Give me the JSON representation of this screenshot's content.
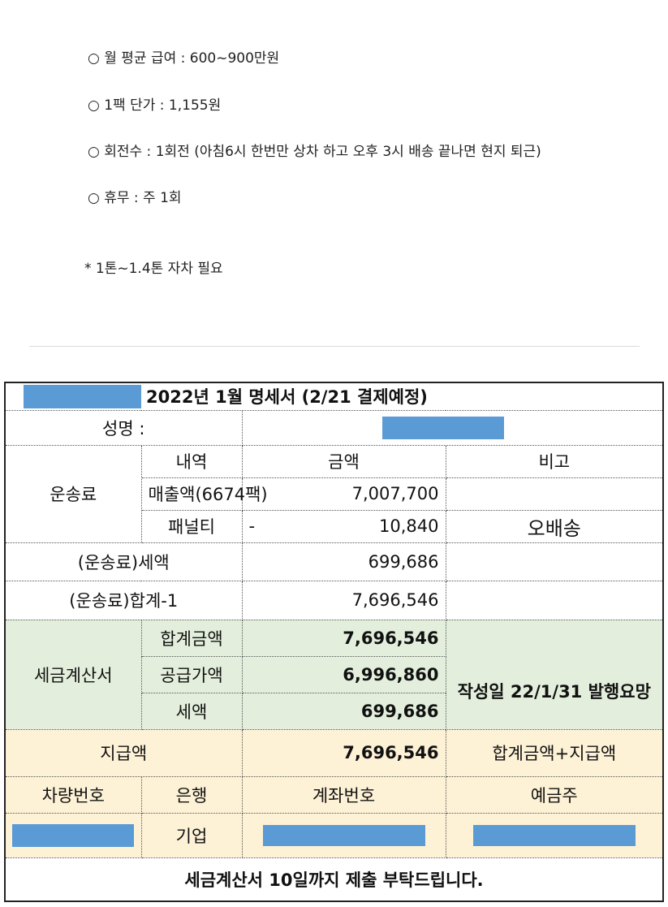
{
  "bullets": [
    "○ 월 평균 급여 : 600~900만원",
    "○ 1팩 단가 : 1,155원",
    "○ 회전수 : 1회전 (아침6시 한번만 상차 하고 오후 3시 배송 끝나면 현지 퇴근)",
    "○ 휴무 : 주 1회"
  ],
  "note": "* 1톤~1.4톤 자차 필요",
  "statement": {
    "title": "2022년 1월 명세서 (2/21 결제예정)",
    "name_label": "성명 :",
    "header": {
      "item": "내역",
      "amount": "금액",
      "remark": "비고"
    },
    "freight": {
      "group_label": "운송료",
      "sales_label": "매출액(6674팩)",
      "sales_amount": "7,007,700",
      "penalty_label": "패널티",
      "penalty_sign": "-",
      "penalty_amount": "10,840",
      "penalty_remark": "오배송"
    },
    "freight_tax": {
      "label": "(운송료)세액",
      "amount": "699,686"
    },
    "freight_total": {
      "label": "(운송료)합계-1",
      "amount": "7,696,546"
    },
    "invoice": {
      "group_label": "세금계산서",
      "total_label": "합계금액",
      "total_amount": "7,696,546",
      "supply_label": "공급가액",
      "supply_amount": "6,996,860",
      "tax_label": "세액",
      "tax_amount": "699,686",
      "remark": "작성일 22/1/31 발행요망"
    },
    "payment": {
      "label": "지급액",
      "amount": "7,696,546",
      "remark": "합계금액+지급액"
    },
    "account_header": {
      "vehicle": "차량번호",
      "bank": "은행",
      "account": "계좌번호",
      "holder": "예금주"
    },
    "account_row": {
      "bank": "기업"
    },
    "footer": "세금계산서 10일까지 제출 부탁드립니다.",
    "colors": {
      "green": "#e3efdc",
      "yellow": "#fdf1d6",
      "mask": "#5b9bd5",
      "red": "#cc1f1f"
    }
  }
}
